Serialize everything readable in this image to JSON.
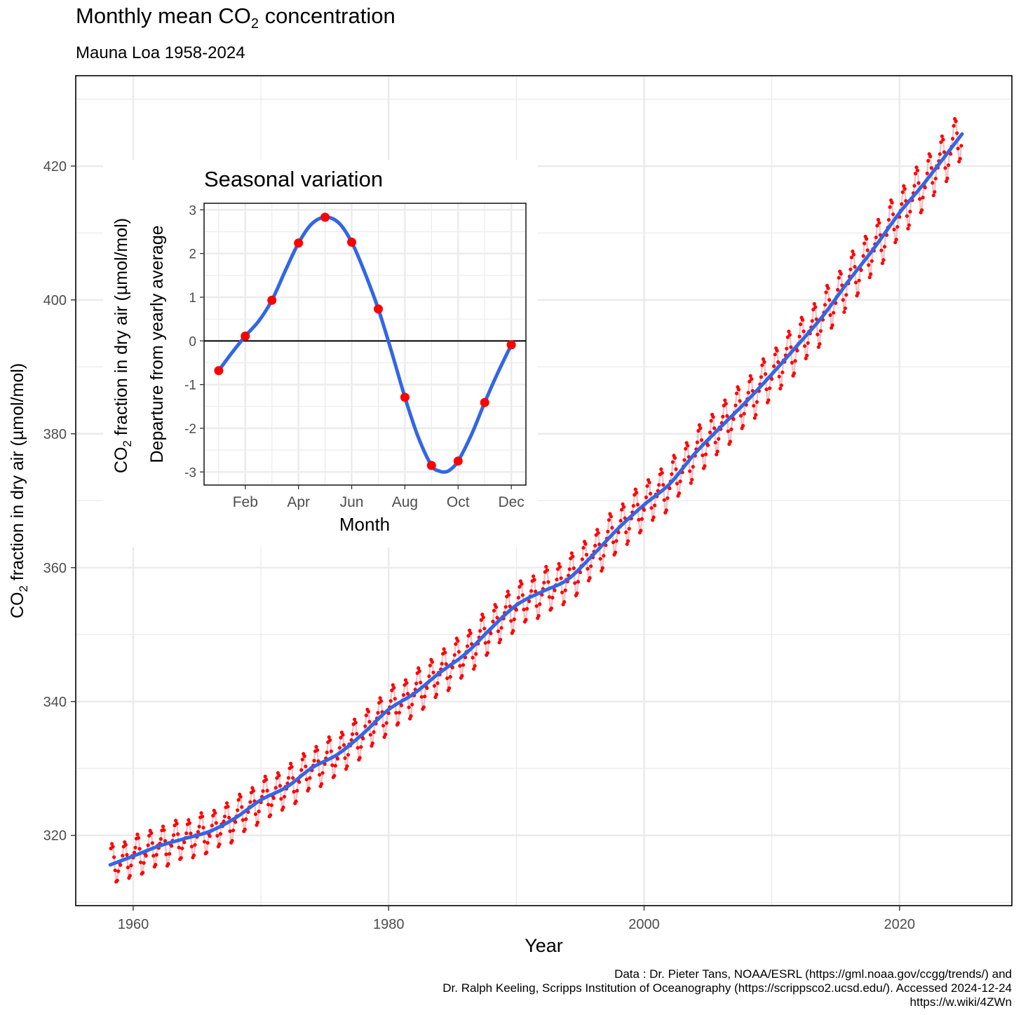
{
  "title": {
    "prefix": "Monthly mean CO",
    "sub": "2",
    "suffix": " concentration"
  },
  "subtitle": "Mauna Loa 1958-2024",
  "caption": [
    "Data : Dr. Pieter Tans, NOAA/ESRL (https://gml.noaa.gov/ccgg/trends/) and",
    "Dr. Ralph Keeling, Scripps Institution of Oceanography (https://scrippsco2.ucsd.edu/). Accessed 2024-12-24",
    "https://w.wiki/4ZWn"
  ],
  "colors": {
    "points": "#ff0000",
    "trend": "#3366e6",
    "raw_line": "#f2c4c8",
    "grid": "#ebebeb"
  },
  "chart_data": [
    {
      "type": "line",
      "xlabel": "Year",
      "ylabel": {
        "prefix": "CO",
        "sub": "2",
        "suffix": " fraction in dry air (µmol/mol)"
      },
      "xlim": [
        1955.5,
        2028.8
      ],
      "ylim": [
        309.5,
        433.5
      ],
      "x_ticks": [
        1960,
        1980,
        2000,
        2020
      ],
      "y_ticks": [
        320,
        340,
        360,
        380,
        400,
        420
      ],
      "grid": true,
      "series": [
        {
          "kind": "monthly-points-and-line",
          "color": "#ff0000",
          "x_start": 1958.25,
          "x_end": 2024.9
        },
        {
          "kind": "smoothed-trend",
          "color": "#3366e6"
        }
      ],
      "trend_x": [
        1958.2,
        1960,
        1962,
        1964,
        1966,
        1968,
        1970,
        1972,
        1974,
        1976,
        1978,
        1980,
        1982,
        1984,
        1986,
        1988,
        1990,
        1992,
        1994,
        1996,
        1998,
        2000,
        2002,
        2004,
        2006,
        2008,
        2010,
        2012,
        2014,
        2016,
        2018,
        2020,
        2022,
        2024.9
      ],
      "trend_y": [
        315.6,
        316.9,
        318.4,
        319.5,
        320.6,
        322.6,
        325.3,
        327.2,
        330.1,
        332.1,
        335.2,
        338.8,
        341.2,
        344.3,
        347.1,
        350.9,
        354.4,
        356.4,
        358.2,
        361.9,
        365.9,
        369.4,
        372.5,
        377.1,
        381.0,
        384.8,
        388.9,
        393.2,
        397.6,
        402.8,
        407.7,
        413.0,
        417.6,
        424.8
      ],
      "seasonal_offsets": [
        -0.45,
        0.2,
        0.9,
        2.2,
        2.8,
        2.3,
        0.7,
        -1.3,
        -3.0,
        -2.8,
        -1.4,
        -0.1
      ]
    },
    {
      "type": "line",
      "title": "Seasonal variation",
      "xlabel": "Month",
      "ylabel_lines": [
        {
          "prefix": "CO",
          "sub": "2",
          "suffix": " fraction in dry air (µmol/mol)"
        },
        {
          "text": "Departure from yearly average"
        }
      ],
      "xlim": [
        0.45,
        12.55
      ],
      "ylim": [
        -3.3,
        3.15
      ],
      "x_ticks": [
        {
          "m": 2,
          "label": "Feb"
        },
        {
          "m": 4,
          "label": "Apr"
        },
        {
          "m": 6,
          "label": "Jun"
        },
        {
          "m": 8,
          "label": "Aug"
        },
        {
          "m": 10,
          "label": "Oct"
        },
        {
          "m": 12,
          "label": "Dec"
        }
      ],
      "y_ticks": [
        -3,
        -2,
        -1,
        0,
        1,
        2,
        3
      ],
      "grid": true,
      "points_x": [
        1,
        2,
        3,
        4,
        5,
        6,
        7,
        8,
        9,
        10,
        11,
        12
      ],
      "points_y": [
        -0.68,
        0.11,
        0.93,
        2.24,
        2.83,
        2.26,
        0.73,
        -1.29,
        -2.85,
        -2.75,
        -1.41,
        -0.09
      ],
      "curve_x": [
        1,
        1.5,
        2,
        2.5,
        3,
        3.5,
        4,
        4.5,
        5,
        5.5,
        6,
        6.5,
        7,
        7.5,
        8,
        8.5,
        9,
        9.3,
        9.5,
        9.7,
        10,
        10.5,
        11,
        11.5,
        12
      ],
      "curve_y": [
        -0.68,
        -0.27,
        0.11,
        0.45,
        0.93,
        1.6,
        2.24,
        2.68,
        2.83,
        2.71,
        2.26,
        1.55,
        0.73,
        -0.25,
        -1.29,
        -2.2,
        -2.85,
        -2.98,
        -3.0,
        -2.95,
        -2.75,
        -2.15,
        -1.41,
        -0.72,
        -0.09
      ]
    }
  ]
}
